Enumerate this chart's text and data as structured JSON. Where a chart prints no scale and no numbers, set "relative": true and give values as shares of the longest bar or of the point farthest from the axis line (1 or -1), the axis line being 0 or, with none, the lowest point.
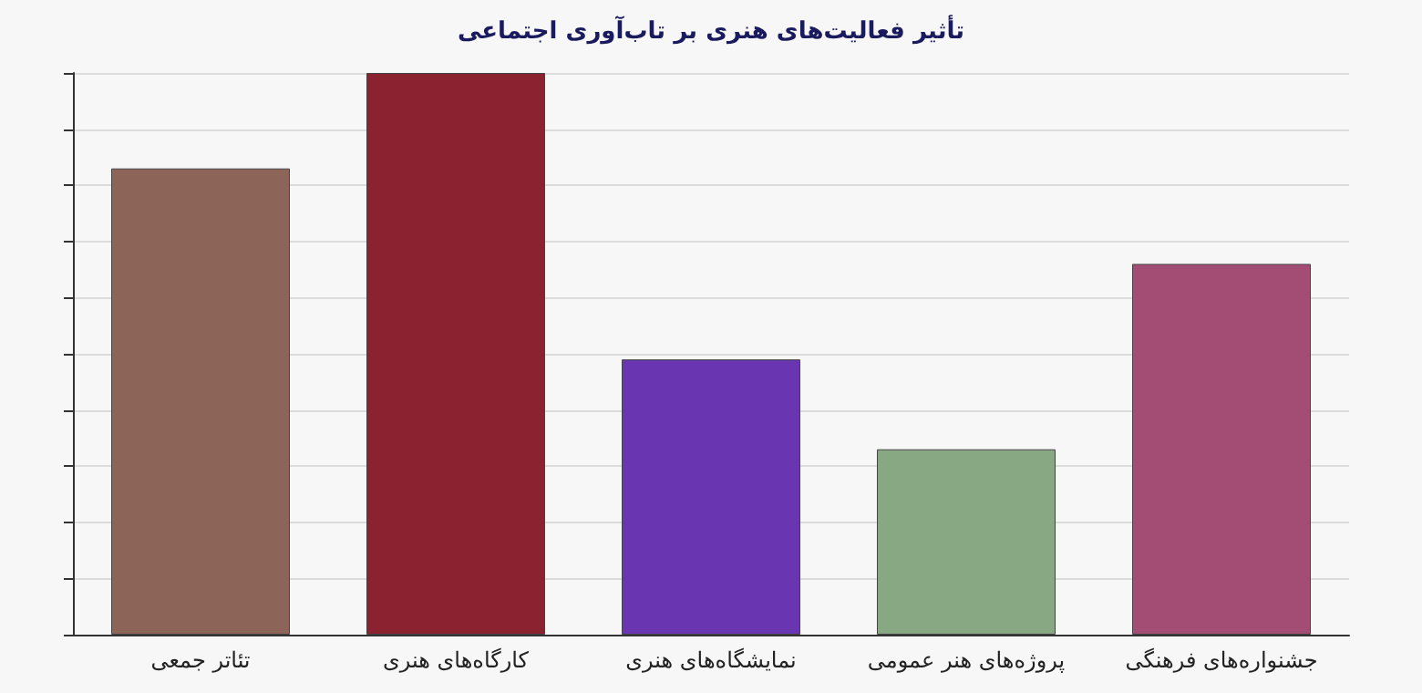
{
  "chart_data": {
    "type": "bar",
    "title": "تأثیر فعالیت‌های هنری بر تاب‌آوری اجتماعی",
    "categories": [
      "تئاتر جمعی",
      "کارگاه‌های هنری",
      "نمایشگاه‌های هنری",
      "پروژه‌های هنر عمومی",
      "جشنواره‌های فرهنگی"
    ],
    "values": [
      0.83,
      1,
      0.49,
      0.33,
      0.66
    ],
    "colors": [
      "#8c6458",
      "#8b2230",
      "#6a35b0",
      "#88a884",
      "#a34d74"
    ],
    "relative": true,
    "grid": "y"
  }
}
